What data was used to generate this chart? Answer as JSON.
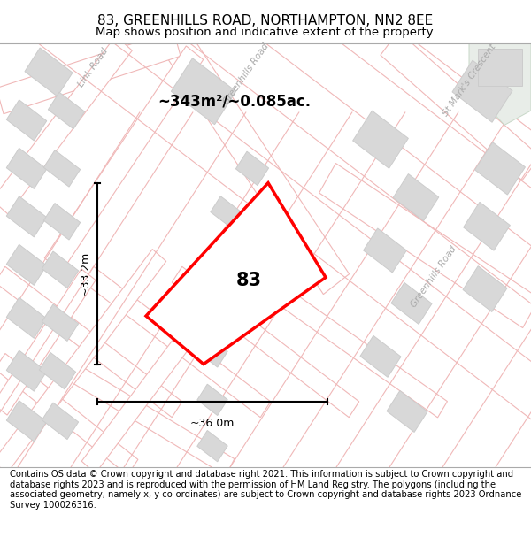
{
  "title": "83, GREENHILLS ROAD, NORTHAMPTON, NN2 8EE",
  "subtitle": "Map shows position and indicative extent of the property.",
  "footer": "Contains OS data © Crown copyright and database right 2021. This information is subject to Crown copyright and database rights 2023 and is reproduced with the permission of HM Land Registry. The polygons (including the associated geometry, namely x, y co-ordinates) are subject to Crown copyright and database rights 2023 Ordnance Survey 100026316.",
  "area_label": "~343m²/~0.085ac.",
  "number_label": "83",
  "dim_vertical": "~33.2m",
  "dim_horizontal": "~36.0m",
  "map_bg": "#ffffff",
  "road_outline_color": "#f0b8b8",
  "road_fill_color": "#ffffff",
  "block_color": "#d8d8d8",
  "block_edge": "#cccccc",
  "green_area": "#e8f0e8",
  "red_plot": "#ff0000",
  "title_fontsize": 11,
  "subtitle_fontsize": 9.5,
  "footer_fontsize": 7.2,
  "figsize": [
    6.0,
    6.25
  ],
  "dpi": 100
}
